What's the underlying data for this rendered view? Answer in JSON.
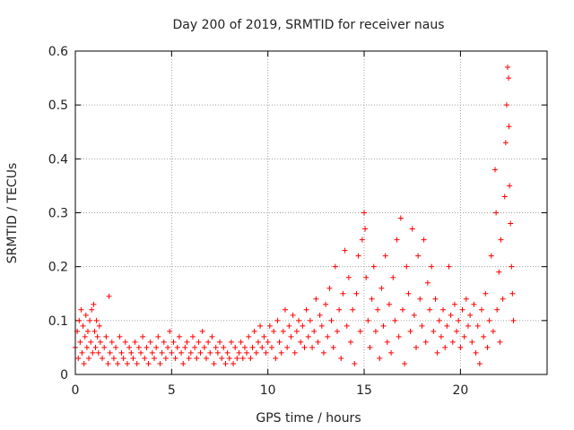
{
  "chart_data": {
    "type": "scatter",
    "title": "Day 200 of 2019, SRMTID for receiver naus",
    "xlabel": "GPS time / hours",
    "ylabel": "SRMTID / TECUs",
    "xlim": [
      0,
      24.5
    ],
    "ylim": [
      0,
      0.6
    ],
    "x_ticks": [
      0,
      5,
      10,
      15,
      20
    ],
    "y_ticks": [
      0,
      0.1,
      0.2,
      0.3,
      0.4,
      0.5,
      0.6
    ],
    "x_tick_labels": [
      "0",
      "5",
      "10",
      "15",
      "20"
    ],
    "y_tick_labels": [
      "0",
      "0.1",
      "0.2",
      "0.3",
      "0.4",
      "0.5",
      "0.6"
    ],
    "grid": true,
    "marker": "+",
    "color": "#ff0000",
    "series": [
      {
        "name": "SRMTID",
        "points": [
          [
            0.0,
            0.05
          ],
          [
            0.1,
            0.08
          ],
          [
            0.15,
            0.03
          ],
          [
            0.2,
            0.1
          ],
          [
            0.25,
            0.06
          ],
          [
            0.3,
            0.12
          ],
          [
            0.35,
            0.04
          ],
          [
            0.4,
            0.09
          ],
          [
            0.45,
            0.02
          ],
          [
            0.5,
            0.07
          ],
          [
            0.55,
            0.11
          ],
          [
            0.6,
            0.05
          ],
          [
            0.65,
            0.08
          ],
          [
            0.7,
            0.03
          ],
          [
            0.75,
            0.1
          ],
          [
            0.8,
            0.06
          ],
          [
            0.85,
            0.12
          ],
          [
            0.9,
            0.04
          ],
          [
            0.95,
            0.13
          ],
          [
            1.0,
            0.08
          ],
          [
            1.05,
            0.05
          ],
          [
            1.1,
            0.1
          ],
          [
            1.15,
            0.07
          ],
          [
            1.2,
            0.04
          ],
          [
            1.25,
            0.09
          ],
          [
            1.3,
            0.06
          ],
          [
            1.4,
            0.03
          ],
          [
            1.5,
            0.05
          ],
          [
            1.6,
            0.07
          ],
          [
            1.7,
            0.02
          ],
          [
            1.75,
            0.145
          ],
          [
            1.8,
            0.04
          ],
          [
            1.9,
            0.06
          ],
          [
            2.0,
            0.03
          ],
          [
            2.1,
            0.05
          ],
          [
            2.2,
            0.02
          ],
          [
            2.3,
            0.07
          ],
          [
            2.4,
            0.04
          ],
          [
            2.5,
            0.03
          ],
          [
            2.6,
            0.06
          ],
          [
            2.7,
            0.02
          ],
          [
            2.8,
            0.05
          ],
          [
            2.9,
            0.04
          ],
          [
            3.0,
            0.03
          ],
          [
            3.1,
            0.06
          ],
          [
            3.2,
            0.02
          ],
          [
            3.3,
            0.05
          ],
          [
            3.4,
            0.04
          ],
          [
            3.5,
            0.07
          ],
          [
            3.6,
            0.03
          ],
          [
            3.7,
            0.05
          ],
          [
            3.8,
            0.02
          ],
          [
            3.9,
            0.06
          ],
          [
            4.0,
            0.04
          ],
          [
            4.1,
            0.03
          ],
          [
            4.2,
            0.05
          ],
          [
            4.3,
            0.07
          ],
          [
            4.4,
            0.02
          ],
          [
            4.5,
            0.04
          ],
          [
            4.6,
            0.06
          ],
          [
            4.7,
            0.03
          ],
          [
            4.8,
            0.05
          ],
          [
            4.9,
            0.08
          ],
          [
            5.0,
            0.04
          ],
          [
            5.1,
            0.06
          ],
          [
            5.2,
            0.03
          ],
          [
            5.3,
            0.05
          ],
          [
            5.4,
            0.07
          ],
          [
            5.5,
            0.04
          ],
          [
            5.6,
            0.02
          ],
          [
            5.7,
            0.05
          ],
          [
            5.8,
            0.06
          ],
          [
            5.9,
            0.03
          ],
          [
            6.0,
            0.04
          ],
          [
            6.1,
            0.07
          ],
          [
            6.2,
            0.05
          ],
          [
            6.3,
            0.03
          ],
          [
            6.4,
            0.06
          ],
          [
            6.5,
            0.04
          ],
          [
            6.6,
            0.08
          ],
          [
            6.7,
            0.05
          ],
          [
            6.8,
            0.03
          ],
          [
            6.9,
            0.06
          ],
          [
            7.0,
            0.04
          ],
          [
            7.1,
            0.07
          ],
          [
            7.2,
            0.02
          ],
          [
            7.3,
            0.05
          ],
          [
            7.4,
            0.04
          ],
          [
            7.5,
            0.06
          ],
          [
            7.6,
            0.03
          ],
          [
            7.7,
            0.05
          ],
          [
            7.8,
            0.02
          ],
          [
            7.9,
            0.04
          ],
          [
            8.0,
            0.03
          ],
          [
            8.1,
            0.06
          ],
          [
            8.2,
            0.02
          ],
          [
            8.3,
            0.05
          ],
          [
            8.4,
            0.03
          ],
          [
            8.5,
            0.04
          ],
          [
            8.6,
            0.06
          ],
          [
            8.7,
            0.03
          ],
          [
            8.8,
            0.05
          ],
          [
            8.9,
            0.04
          ],
          [
            9.0,
            0.07
          ],
          [
            9.1,
            0.03
          ],
          [
            9.2,
            0.05
          ],
          [
            9.3,
            0.08
          ],
          [
            9.4,
            0.04
          ],
          [
            9.5,
            0.06
          ],
          [
            9.6,
            0.09
          ],
          [
            9.7,
            0.05
          ],
          [
            9.8,
            0.07
          ],
          [
            9.9,
            0.04
          ],
          [
            10.0,
            0.06
          ],
          [
            10.1,
            0.09
          ],
          [
            10.2,
            0.05
          ],
          [
            10.3,
            0.08
          ],
          [
            10.4,
            0.03
          ],
          [
            10.5,
            0.1
          ],
          [
            10.6,
            0.06
          ],
          [
            10.7,
            0.04
          ],
          [
            10.8,
            0.08
          ],
          [
            10.9,
            0.12
          ],
          [
            11.0,
            0.05
          ],
          [
            11.1,
            0.09
          ],
          [
            11.2,
            0.07
          ],
          [
            11.3,
            0.11
          ],
          [
            11.4,
            0.04
          ],
          [
            11.5,
            0.08
          ],
          [
            11.6,
            0.1
          ],
          [
            11.7,
            0.06
          ],
          [
            11.8,
            0.09
          ],
          [
            11.9,
            0.05
          ],
          [
            12.0,
            0.12
          ],
          [
            12.1,
            0.07
          ],
          [
            12.2,
            0.1
          ],
          [
            12.3,
            0.05
          ],
          [
            12.4,
            0.08
          ],
          [
            12.5,
            0.14
          ],
          [
            12.6,
            0.06
          ],
          [
            12.7,
            0.11
          ],
          [
            12.8,
            0.09
          ],
          [
            12.9,
            0.04
          ],
          [
            13.0,
            0.13
          ],
          [
            13.1,
            0.07
          ],
          [
            13.2,
            0.16
          ],
          [
            13.3,
            0.1
          ],
          [
            13.4,
            0.05
          ],
          [
            13.5,
            0.2
          ],
          [
            13.6,
            0.08
          ],
          [
            13.7,
            0.12
          ],
          [
            13.8,
            0.03
          ],
          [
            13.9,
            0.15
          ],
          [
            14.0,
            0.23
          ],
          [
            14.1,
            0.09
          ],
          [
            14.2,
            0.18
          ],
          [
            14.3,
            0.06
          ],
          [
            14.4,
            0.12
          ],
          [
            14.5,
            0.02
          ],
          [
            14.6,
            0.15
          ],
          [
            14.7,
            0.22
          ],
          [
            14.8,
            0.08
          ],
          [
            14.9,
            0.25
          ],
          [
            15.0,
            0.3
          ],
          [
            15.05,
            0.27
          ],
          [
            15.1,
            0.18
          ],
          [
            15.2,
            0.1
          ],
          [
            15.3,
            0.05
          ],
          [
            15.4,
            0.14
          ],
          [
            15.5,
            0.2
          ],
          [
            15.6,
            0.08
          ],
          [
            15.7,
            0.12
          ],
          [
            15.8,
            0.03
          ],
          [
            15.9,
            0.16
          ],
          [
            16.0,
            0.09
          ],
          [
            16.1,
            0.22
          ],
          [
            16.2,
            0.06
          ],
          [
            16.3,
            0.13
          ],
          [
            16.4,
            0.04
          ],
          [
            16.5,
            0.18
          ],
          [
            16.6,
            0.1
          ],
          [
            16.7,
            0.25
          ],
          [
            16.8,
            0.07
          ],
          [
            16.9,
            0.29
          ],
          [
            17.0,
            0.12
          ],
          [
            17.1,
            0.02
          ],
          [
            17.2,
            0.2
          ],
          [
            17.3,
            0.15
          ],
          [
            17.4,
            0.08
          ],
          [
            17.5,
            0.27
          ],
          [
            17.6,
            0.11
          ],
          [
            17.7,
            0.05
          ],
          [
            17.8,
            0.22
          ],
          [
            17.9,
            0.14
          ],
          [
            18.0,
            0.09
          ],
          [
            18.1,
            0.25
          ],
          [
            18.2,
            0.06
          ],
          [
            18.3,
            0.17
          ],
          [
            18.4,
            0.12
          ],
          [
            18.5,
            0.2
          ],
          [
            18.6,
            0.08
          ],
          [
            18.7,
            0.14
          ],
          [
            18.8,
            0.04
          ],
          [
            18.9,
            0.1
          ],
          [
            19.0,
            0.07
          ],
          [
            19.1,
            0.12
          ],
          [
            19.2,
            0.05
          ],
          [
            19.3,
            0.09
          ],
          [
            19.4,
            0.2
          ],
          [
            19.5,
            0.11
          ],
          [
            19.6,
            0.06
          ],
          [
            19.7,
            0.13
          ],
          [
            19.8,
            0.08
          ],
          [
            19.9,
            0.1
          ],
          [
            20.0,
            0.05
          ],
          [
            20.1,
            0.12
          ],
          [
            20.2,
            0.07
          ],
          [
            20.3,
            0.14
          ],
          [
            20.4,
            0.09
          ],
          [
            20.5,
            0.11
          ],
          [
            20.6,
            0.06
          ],
          [
            20.7,
            0.13
          ],
          [
            20.8,
            0.04
          ],
          [
            20.9,
            0.09
          ],
          [
            21.0,
            0.02
          ],
          [
            21.1,
            0.12
          ],
          [
            21.2,
            0.07
          ],
          [
            21.3,
            0.15
          ],
          [
            21.4,
            0.05
          ],
          [
            21.5,
            0.1
          ],
          [
            21.6,
            0.22
          ],
          [
            21.7,
            0.08
          ],
          [
            21.8,
            0.38
          ],
          [
            21.85,
            0.3
          ],
          [
            21.9,
            0.12
          ],
          [
            22.0,
            0.19
          ],
          [
            22.05,
            0.06
          ],
          [
            22.1,
            0.25
          ],
          [
            22.2,
            0.14
          ],
          [
            22.3,
            0.33
          ],
          [
            22.35,
            0.43
          ],
          [
            22.4,
            0.5
          ],
          [
            22.45,
            0.57
          ],
          [
            22.5,
            0.55
          ],
          [
            22.52,
            0.46
          ],
          [
            22.55,
            0.35
          ],
          [
            22.6,
            0.28
          ],
          [
            22.65,
            0.2
          ],
          [
            22.7,
            0.15
          ],
          [
            22.75,
            0.1
          ]
        ]
      }
    ]
  }
}
